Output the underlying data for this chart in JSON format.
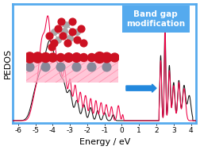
{
  "title": "Band gap\nmodification",
  "xlabel": "Energy / eV",
  "ylabel": "PEDOS",
  "xlim": [
    -6.3,
    4.3
  ],
  "ylim": [
    -0.02,
    1.08
  ],
  "background_color": "#ffffff",
  "border_color": "#55aaee",
  "border_lw": 2.0,
  "black_line_color": "#111111",
  "red_line_color": "#ee0044",
  "arrow_color": "#2288dd",
  "box_color": "#55aaee",
  "box_text_color": "#ffffff",
  "tick_label_fontsize": 6.5,
  "axis_label_fontsize": 8,
  "title_fontsize": 7.5
}
